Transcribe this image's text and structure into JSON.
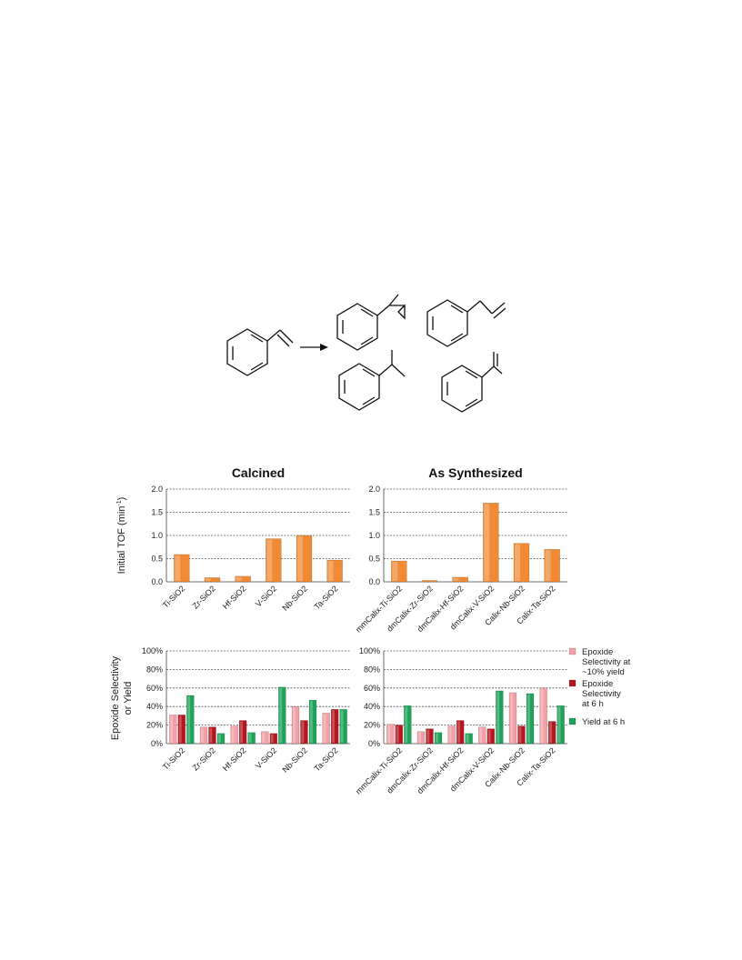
{
  "colors": {
    "tof": "#f08a34",
    "selectivity_10": "#f2a0a6",
    "selectivity_6h": "#b4171f",
    "yield_6h": "#1fa35a",
    "grid": "#555555"
  },
  "scheme": {
    "arrow": "arrow-right",
    "reactant": "styrene",
    "products": [
      "cyclopropyl-product",
      "allylbenzene",
      "sec-butylbenzene",
      "alpha-methylstyrene"
    ]
  },
  "chart_data": [
    {
      "type": "bar",
      "title": "Calcined",
      "categories": [
        "Ti-SiO2",
        "Zr-SiO2",
        "Hf-SiO2",
        "V-SiO2",
        "Nb-SiO2",
        "Ta-SiO2"
      ],
      "series": [
        {
          "values": [
            0.59,
            0.09,
            0.12,
            0.93,
            1.0,
            0.47
          ]
        }
      ],
      "ylabel": "Initial TOF (min",
      "ylabel_sup": "-1",
      "ylabel_end": ")",
      "ylim": [
        0,
        2.0
      ],
      "yticks": [
        "0.0",
        "0.5",
        "1.0",
        "1.5",
        "2.0"
      ],
      "grid": true
    },
    {
      "type": "bar",
      "title": "As Synthesized",
      "categories": [
        "mmCalix-Ti-SiO2",
        "dmCalix-Zr-SiO2",
        "dmCalix-Hf-SiO2",
        "dmCalix-V-SiO2",
        "Calix-Nb-SiO2",
        "Calix-Ta-SiO2"
      ],
      "series": [
        {
          "values": [
            0.45,
            0.03,
            0.1,
            1.7,
            0.83,
            0.7
          ]
        }
      ],
      "ylim": [
        0,
        2.0
      ],
      "yticks": [
        "0.0",
        "0.5",
        "1.0",
        "1.5",
        "2.0"
      ],
      "grid": true
    },
    {
      "type": "bar",
      "categories": [
        "Ti-SiO2",
        "Zr-SiO2",
        "Hf-SiO2",
        "V-SiO2",
        "Nb-SiO2",
        "Ta-SiO2"
      ],
      "series": [
        {
          "name": "Epoxide Selectivity at ~10% yield",
          "values": [
            31,
            18,
            19,
            13,
            40,
            33
          ]
        },
        {
          "name": "Epoxide Selectivity at 6 h",
          "values": [
            31,
            18,
            25,
            11,
            25,
            37
          ]
        },
        {
          "name": "Yield at 6 h",
          "values": [
            52,
            11,
            12,
            61,
            47,
            37
          ]
        }
      ],
      "ylabel_line1": "Epoxide Selectivity",
      "ylabel_line2": "or Yield",
      "ylim": [
        0,
        100
      ],
      "yticks": [
        "0%",
        "20%",
        "40%",
        "60%",
        "80%",
        "100%"
      ],
      "grid": true
    },
    {
      "type": "bar",
      "categories": [
        "mmCalix-Ti-SiO2",
        "dmCalix-Zr-SiO2",
        "dmCalix-Hf-SiO2",
        "dmCalix-V-SiO2",
        "Calix-Nb-SiO2",
        "Calix-Ta-SiO2"
      ],
      "series": [
        {
          "name": "Epoxide Selectivity at ~10% yield",
          "values": [
            21,
            13,
            19,
            18,
            55,
            60
          ]
        },
        {
          "name": "Epoxide Selectivity at 6 h",
          "values": [
            20,
            16,
            25,
            16,
            19,
            24
          ]
        },
        {
          "name": "Yield at 6 h",
          "values": [
            41,
            12,
            11,
            57,
            54,
            41
          ]
        }
      ],
      "ylim": [
        0,
        100
      ],
      "yticks": [
        "0%",
        "20%",
        "40%",
        "60%",
        "80%",
        "100%"
      ],
      "grid": true
    }
  ],
  "legend": {
    "placement": "right",
    "items": [
      {
        "lines": [
          "Epoxide",
          "Selectivity at",
          "~10% yield"
        ]
      },
      {
        "lines": [
          "Epoxide",
          "Selectivity",
          "at 6 h"
        ]
      },
      {
        "lines": [
          "Yield at 6 h"
        ]
      }
    ]
  }
}
